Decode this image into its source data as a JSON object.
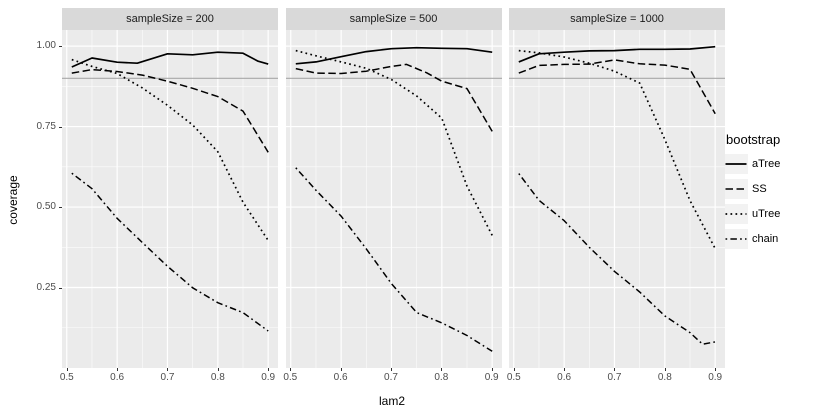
{
  "chart_data": {
    "type": "line",
    "facet_variable": "sampleSize",
    "xlabel": "lam2",
    "ylabel": "coverage",
    "x_domain": [
      0.4905,
      0.9195
    ],
    "y_domain": [
      0,
      1.05
    ],
    "x_ticks": [
      0.5,
      0.6,
      0.7,
      0.8,
      0.9
    ],
    "x_tick_labels": [
      "0.5",
      "0.6",
      "0.7",
      "0.8",
      "0.9"
    ],
    "x_minor_ticks": [
      0.55,
      0.65,
      0.75,
      0.85
    ],
    "y_ticks": [
      0.25,
      0.5,
      0.75,
      1.0
    ],
    "y_tick_labels": [
      "0.25",
      "0.50",
      "0.75",
      "1.00"
    ],
    "y_minor_ticks": [
      0.125,
      0.375,
      0.625,
      0.875
    ],
    "reference_line_y": 0.9,
    "grid": true,
    "legend": {
      "title": "bootstrap",
      "position": "right",
      "entries": [
        {
          "name": "aTree",
          "linetype": "solid"
        },
        {
          "name": "SS",
          "linetype": "dashed"
        },
        {
          "name": "uTree",
          "linetype": "dotted"
        },
        {
          "name": "chain",
          "linetype": "dotdash"
        }
      ]
    },
    "line_color": "#000000",
    "panel_background": "#ebebeb",
    "strip_background": "#d9d9d9",
    "facets": [
      {
        "label": "sampleSize = 200",
        "series": [
          {
            "name": "aTree",
            "linetype": "solid",
            "points": [
              [
                0.51,
                0.935
              ],
              [
                0.55,
                0.963
              ],
              [
                0.6,
                0.95
              ],
              [
                0.64,
                0.947
              ],
              [
                0.7,
                0.976
              ],
              [
                0.75,
                0.973
              ],
              [
                0.8,
                0.981
              ],
              [
                0.85,
                0.978
              ],
              [
                0.88,
                0.953
              ],
              [
                0.9,
                0.944
              ]
            ]
          },
          {
            "name": "SS",
            "linetype": "dashed",
            "points": [
              [
                0.51,
                0.916
              ],
              [
                0.55,
                0.927
              ],
              [
                0.6,
                0.921
              ],
              [
                0.65,
                0.91
              ],
              [
                0.7,
                0.891
              ],
              [
                0.75,
                0.869
              ],
              [
                0.8,
                0.843
              ],
              [
                0.85,
                0.798
              ],
              [
                0.9,
                0.67
              ]
            ]
          },
          {
            "name": "uTree",
            "linetype": "dotted",
            "points": [
              [
                0.51,
                0.958
              ],
              [
                0.55,
                0.937
              ],
              [
                0.6,
                0.915
              ],
              [
                0.65,
                0.87
              ],
              [
                0.7,
                0.816
              ],
              [
                0.75,
                0.755
              ],
              [
                0.8,
                0.672
              ],
              [
                0.85,
                0.515
              ],
              [
                0.9,
                0.396
              ]
            ]
          },
          {
            "name": "chain",
            "linetype": "dotdash",
            "points": [
              [
                0.51,
                0.605
              ],
              [
                0.55,
                0.557
              ],
              [
                0.6,
                0.465
              ],
              [
                0.65,
                0.39
              ],
              [
                0.7,
                0.316
              ],
              [
                0.75,
                0.249
              ],
              [
                0.8,
                0.203
              ],
              [
                0.85,
                0.172
              ],
              [
                0.9,
                0.115
              ]
            ]
          }
        ]
      },
      {
        "label": "sampleSize = 500",
        "series": [
          {
            "name": "aTree",
            "linetype": "solid",
            "points": [
              [
                0.51,
                0.945
              ],
              [
                0.55,
                0.951
              ],
              [
                0.6,
                0.967
              ],
              [
                0.65,
                0.983
              ],
              [
                0.7,
                0.992
              ],
              [
                0.75,
                0.995
              ],
              [
                0.8,
                0.993
              ],
              [
                0.85,
                0.992
              ],
              [
                0.9,
                0.981
              ]
            ]
          },
          {
            "name": "SS",
            "linetype": "dashed",
            "points": [
              [
                0.51,
                0.93
              ],
              [
                0.55,
                0.916
              ],
              [
                0.6,
                0.915
              ],
              [
                0.65,
                0.922
              ],
              [
                0.7,
                0.937
              ],
              [
                0.73,
                0.943
              ],
              [
                0.77,
                0.917
              ],
              [
                0.8,
                0.891
              ],
              [
                0.85,
                0.868
              ],
              [
                0.9,
                0.735
              ]
            ]
          },
          {
            "name": "uTree",
            "linetype": "dotted",
            "points": [
              [
                0.51,
                0.986
              ],
              [
                0.55,
                0.97
              ],
              [
                0.6,
                0.951
              ],
              [
                0.65,
                0.931
              ],
              [
                0.7,
                0.896
              ],
              [
                0.75,
                0.845
              ],
              [
                0.8,
                0.776
              ],
              [
                0.85,
                0.565
              ],
              [
                0.9,
                0.412
              ]
            ]
          },
          {
            "name": "chain",
            "linetype": "dotdash",
            "points": [
              [
                0.51,
                0.622
              ],
              [
                0.55,
                0.552
              ],
              [
                0.6,
                0.472
              ],
              [
                0.65,
                0.37
              ],
              [
                0.7,
                0.262
              ],
              [
                0.75,
                0.172
              ],
              [
                0.8,
                0.14
              ],
              [
                0.85,
                0.101
              ],
              [
                0.9,
                0.052
              ]
            ]
          }
        ]
      },
      {
        "label": "sampleSize = 1000",
        "series": [
          {
            "name": "aTree",
            "linetype": "solid",
            "points": [
              [
                0.51,
                0.951
              ],
              [
                0.55,
                0.976
              ],
              [
                0.6,
                0.981
              ],
              [
                0.65,
                0.985
              ],
              [
                0.7,
                0.986
              ],
              [
                0.75,
                0.99
              ],
              [
                0.8,
                0.99
              ],
              [
                0.85,
                0.991
              ],
              [
                0.9,
                0.998
              ]
            ]
          },
          {
            "name": "SS",
            "linetype": "dashed",
            "points": [
              [
                0.51,
                0.916
              ],
              [
                0.55,
                0.94
              ],
              [
                0.6,
                0.943
              ],
              [
                0.65,
                0.944
              ],
              [
                0.7,
                0.957
              ],
              [
                0.75,
                0.945
              ],
              [
                0.8,
                0.941
              ],
              [
                0.85,
                0.928
              ],
              [
                0.9,
                0.79
              ]
            ]
          },
          {
            "name": "uTree",
            "linetype": "dotted",
            "points": [
              [
                0.51,
                0.986
              ],
              [
                0.55,
                0.979
              ],
              [
                0.6,
                0.966
              ],
              [
                0.65,
                0.947
              ],
              [
                0.7,
                0.922
              ],
              [
                0.75,
                0.885
              ],
              [
                0.8,
                0.71
              ],
              [
                0.85,
                0.52
              ],
              [
                0.9,
                0.371
              ]
            ]
          },
          {
            "name": "chain",
            "linetype": "dotdash",
            "points": [
              [
                0.51,
                0.604
              ],
              [
                0.55,
                0.521
              ],
              [
                0.6,
                0.458
              ],
              [
                0.65,
                0.375
              ],
              [
                0.7,
                0.3
              ],
              [
                0.75,
                0.236
              ],
              [
                0.8,
                0.162
              ],
              [
                0.85,
                0.11
              ],
              [
                0.875,
                0.074
              ],
              [
                0.9,
                0.081
              ]
            ]
          }
        ]
      }
    ]
  }
}
